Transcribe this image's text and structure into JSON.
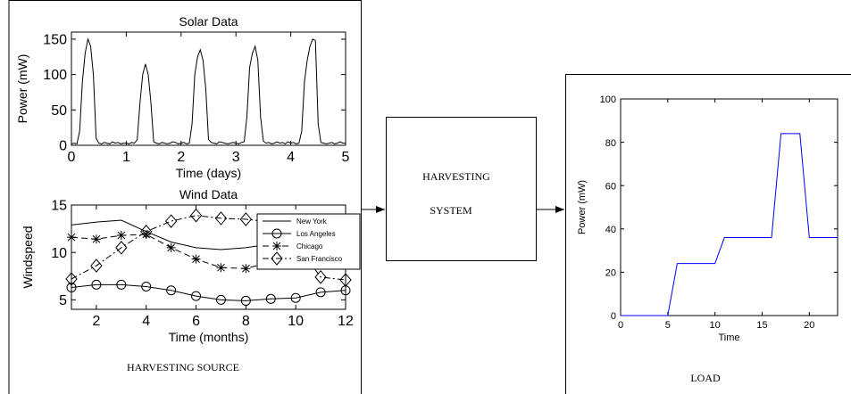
{
  "nodes": [
    {
      "label": "HARVESTING SOURCE"
    },
    {
      "label_lines": [
        "HARVESTING",
        "SYSTEM"
      ]
    },
    {
      "label": "LOAD"
    }
  ],
  "chart_data": [
    {
      "type": "line",
      "title": "Solar Data",
      "xlabel": "Time (days)",
      "ylabel": "Power (mW)",
      "color": "#000000",
      "x": [
        0,
        0.05,
        0.1,
        0.15,
        0.2,
        0.25,
        0.3,
        0.35,
        0.4,
        0.45,
        0.5,
        0.55,
        0.6,
        0.65,
        0.7,
        0.75,
        0.8,
        0.85,
        0.9,
        0.95,
        1,
        1.05,
        1.1,
        1.15,
        1.2,
        1.25,
        1.3,
        1.35,
        1.4,
        1.45,
        1.5,
        1.55,
        1.6,
        1.65,
        1.7,
        1.75,
        1.8,
        1.85,
        1.9,
        1.95,
        2,
        2.05,
        2.1,
        2.15,
        2.2,
        2.25,
        2.3,
        2.35,
        2.4,
        2.45,
        2.5,
        2.55,
        2.6,
        2.65,
        2.7,
        2.75,
        2.8,
        2.85,
        2.9,
        2.95,
        3,
        3.05,
        3.1,
        3.15,
        3.2,
        3.25,
        3.3,
        3.35,
        3.4,
        3.45,
        3.5,
        3.55,
        3.6,
        3.65,
        3.7,
        3.75,
        3.8,
        3.85,
        3.9,
        3.95,
        4,
        4.05,
        4.1,
        4.15,
        4.2,
        4.25,
        4.3,
        4.35,
        4.4,
        4.45,
        4.5,
        4.55,
        4.6,
        4.65,
        4.7,
        4.75,
        4.8,
        4.85,
        4.9,
        4.95,
        5
      ],
      "values": [
        2,
        3,
        2,
        20,
        90,
        130,
        150,
        140,
        100,
        10,
        3,
        2,
        4,
        3,
        2,
        5,
        3,
        4,
        2,
        3,
        3,
        2,
        4,
        3,
        8,
        60,
        100,
        115,
        100,
        60,
        5,
        3,
        2,
        4,
        3,
        2,
        3,
        5,
        4,
        2,
        3,
        4,
        2,
        3,
        30,
        100,
        125,
        135,
        120,
        80,
        8,
        4,
        3,
        2,
        5,
        4,
        3,
        2,
        3,
        4,
        3,
        2,
        4,
        5,
        40,
        110,
        130,
        140,
        120,
        40,
        6,
        3,
        4,
        2,
        3,
        5,
        3,
        4,
        2,
        5,
        3,
        4,
        2,
        3,
        20,
        90,
        120,
        140,
        150,
        148,
        30,
        4,
        3,
        2,
        3,
        4,
        2,
        3,
        5,
        3,
        3
      ],
      "xlim": [
        0,
        5
      ],
      "xticks": [
        0,
        1,
        2,
        3,
        4,
        5
      ],
      "ylim": [
        0,
        160
      ],
      "yticks": [
        0,
        50,
        100,
        150
      ]
    },
    {
      "type": "line",
      "title": "Wind Data",
      "xlabel": "Time (months)",
      "ylabel": "Windspeed",
      "x": [
        1,
        2,
        3,
        4,
        5,
        6,
        7,
        8,
        9,
        10,
        11,
        12
      ],
      "series": [
        {
          "name": "New York",
          "color": "#000000",
          "linestyle": "-",
          "marker": "none",
          "values": [
            12.9,
            13.2,
            13.4,
            12.2,
            11.1,
            10.5,
            10.3,
            10.5,
            10.9,
            11.9,
            12.8,
            13.3
          ]
        },
        {
          "name": "Los Angeles",
          "color": "#000000",
          "linestyle": "-",
          "marker": "o",
          "values": [
            6.3,
            6.6,
            6.6,
            6.4,
            6.0,
            5.4,
            5.0,
            4.9,
            5.1,
            5.2,
            5.8,
            6.0
          ]
        },
        {
          "name": "Chicago",
          "color": "#000000",
          "linestyle": "--",
          "marker": "*",
          "values": [
            11.6,
            11.4,
            11.8,
            11.9,
            10.5,
            9.3,
            8.4,
            8.3,
            9.0,
            9.7,
            10.3,
            11.0
          ]
        },
        {
          "name": "San Francisco",
          "color": "#000000",
          "linestyle": "-.",
          "marker": "d",
          "values": [
            7.2,
            8.6,
            10.5,
            12.2,
            13.3,
            13.9,
            13.6,
            13.5,
            13.2,
            11.0,
            7.4,
            7.1
          ]
        }
      ],
      "xlim": [
        1,
        12
      ],
      "xticks": [
        2,
        4,
        6,
        8,
        10,
        12
      ],
      "ylim": [
        4,
        15
      ],
      "yticks": [
        5,
        10,
        15
      ],
      "legend": "upper right"
    },
    {
      "type": "line",
      "xlabel": "Time",
      "ylabel": "Power (mW)",
      "color": "#0000ff",
      "x": [
        0,
        5,
        6,
        10,
        11,
        16,
        17,
        19,
        20,
        23
      ],
      "values": [
        0,
        0,
        24,
        24,
        36,
        36,
        84,
        84,
        36,
        36
      ],
      "xlim": [
        0,
        23
      ],
      "xticks": [
        0,
        5,
        10,
        15,
        20
      ],
      "ylim": [
        0,
        100
      ],
      "yticks": [
        0,
        20,
        40,
        60,
        80,
        100
      ]
    }
  ]
}
